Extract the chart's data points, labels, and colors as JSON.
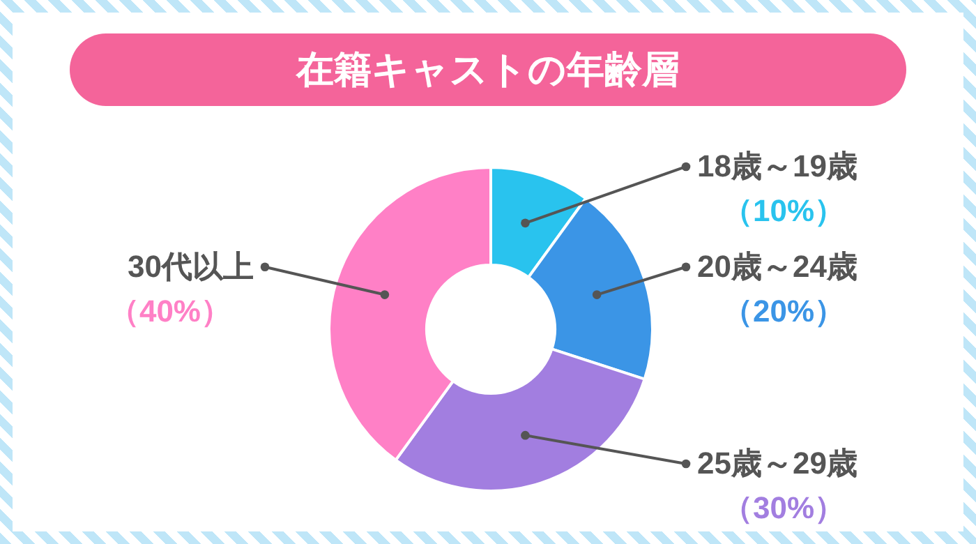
{
  "chart_data": {
    "type": "donut",
    "title": "在籍キャストの年齢層",
    "categories": [
      "18歳～19歳",
      "20歳～24歳",
      "25歳～29歳",
      "30代以上"
    ],
    "values": [
      10,
      20,
      30,
      40
    ],
    "colors": [
      "#29c3ee",
      "#3b95e6",
      "#a27ee0",
      "#ff80c6"
    ],
    "value_labels": [
      "（10%）",
      "（20%）",
      "（30%）",
      "（40%）"
    ]
  }
}
